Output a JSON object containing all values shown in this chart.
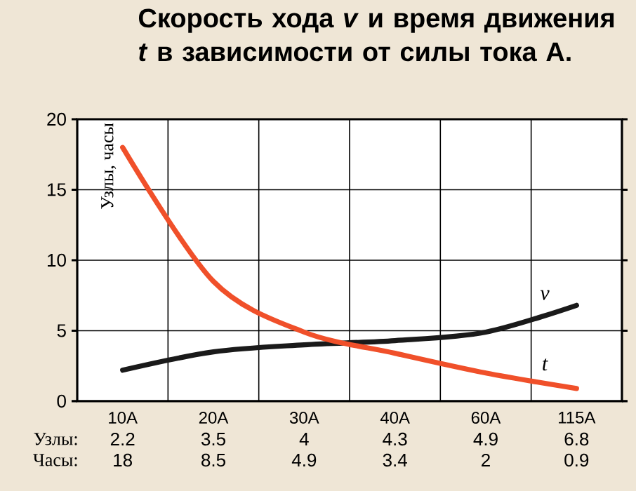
{
  "chart_data": {
    "type": "line",
    "title": "Скорость хода *v* и время движения *t* в зависимости от силы тока A.",
    "ylabel": "Узлы, часы",
    "categories": [
      "10A",
      "20A",
      "30A",
      "40A",
      "60A",
      "115A"
    ],
    "series": [
      {
        "name": "v",
        "color": "#1a1a1a",
        "values": [
          2.2,
          3.5,
          4,
          4.3,
          4.9,
          6.8
        ]
      },
      {
        "name": "t",
        "color": "#f0502a",
        "values": [
          18,
          8.5,
          4.9,
          3.4,
          2,
          0.9
        ]
      }
    ],
    "annotations": [
      "Узлы:",
      "Часы:"
    ],
    "data_labels": true,
    "ylim": [
      0,
      20
    ],
    "yticks": [
      0,
      5,
      10,
      15,
      20
    ],
    "grid": true,
    "legend": false,
    "marker": "none",
    "line_style": "solid"
  }
}
